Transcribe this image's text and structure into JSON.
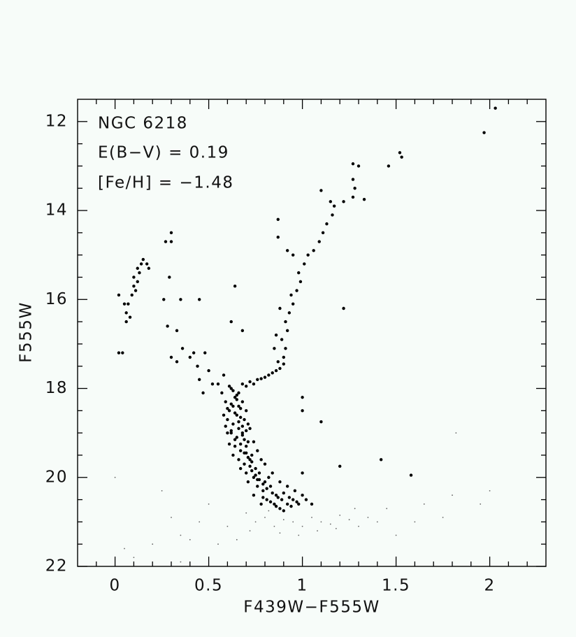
{
  "chart_data": {
    "type": "scatter",
    "annotations": [
      "NGC 6218",
      "E(B−V) = 0.19",
      "[Fe/H] = −1.48"
    ],
    "xlabel": "F439W−F555W",
    "ylabel": "F555W",
    "xlim": [
      -0.2,
      2.3
    ],
    "ylim": [
      22,
      11.5
    ],
    "xticks": [
      0,
      0.5,
      1,
      1.5,
      2
    ],
    "yticks": [
      12,
      14,
      16,
      18,
      20,
      22
    ],
    "minor_xticks": [
      -0.1,
      0.1,
      0.2,
      0.3,
      0.4,
      0.6,
      0.7,
      0.8,
      0.9,
      1.1,
      1.2,
      1.3,
      1.4,
      1.6,
      1.7,
      1.8,
      1.9,
      2.1,
      2.2
    ],
    "minor_yticks": [
      12.5,
      13,
      13.5,
      14.5,
      15,
      15.5,
      16.5,
      17,
      17.5,
      18.5,
      19,
      19.5,
      20.5,
      21,
      21.5
    ],
    "series": [
      {
        "color": "#000000",
        "x": [
          0.62,
          0.64,
          0.66,
          0.63,
          0.61,
          0.65,
          0.68,
          0.6,
          0.63,
          0.66,
          0.69,
          0.62,
          0.65,
          0.68,
          0.71,
          0.64,
          0.67,
          0.7,
          0.73,
          0.66,
          0.69,
          0.72,
          0.75,
          0.7,
          0.74,
          0.77,
          0.8,
          0.76,
          0.79,
          0.83,
          0.86,
          0.81,
          0.85,
          0.89,
          0.92,
          0.88,
          0.95,
          0.98,
          1.02,
          0.78,
          0.74,
          0.71,
          0.67,
          0.63,
          0.6,
          0.58,
          0.59,
          0.57,
          0.7,
          0.72,
          0.76,
          0.8,
          0.84,
          0.88,
          0.92,
          0.96,
          1.0,
          1.05,
          0.82,
          0.78,
          0.74,
          0.71,
          0.66,
          0.61,
          0.63,
          0.65,
          0.67,
          0.64,
          0.66,
          0.68,
          0.7,
          0.62,
          0.64,
          0.67,
          0.69,
          0.71,
          0.73,
          0.68,
          0.7,
          0.72,
          0.75,
          0.77,
          0.79,
          0.81,
          0.84,
          0.87,
          0.9,
          0.93,
          0.97,
          0.73,
          0.76,
          0.79,
          0.83,
          0.86,
          0.9,
          0.94,
          0.65,
          0.67,
          0.69,
          0.6,
          0.62,
          0.59,
          0.61,
          0.68,
          0.72,
          0.76,
          0.8,
          0.84,
          0.88,
          0.9,
          0.7,
          0.74,
          0.78,
          0.82,
          0.86,
          0.9,
          0.91,
          0.89,
          0.92,
          0.91,
          0.93,
          0.95,
          0.94,
          0.97,
          0.99,
          0.98,
          1.01,
          1.03,
          1.06,
          1.09,
          1.11,
          1.13,
          1.16,
          1.17,
          1.22,
          1.27,
          1.28,
          1.27,
          1.3,
          1.27,
          1.46,
          1.52,
          1.53,
          1.97,
          2.03,
          1.1,
          1.15,
          1.33,
          0.87,
          0.87,
          0.92,
          0.95,
          0.88,
          0.86,
          0.85,
          0.87,
          1.22,
          0.64,
          1.0,
          1.0,
          1.1,
          1.42,
          1.58,
          1.2,
          1.0,
          0.02,
          0.04,
          0.02,
          0.05,
          0.06,
          0.06,
          0.07,
          0.09,
          0.1,
          0.1,
          0.12,
          0.13,
          0.12,
          0.14,
          0.15,
          0.17,
          0.18,
          0.11,
          0.08,
          0.27,
          0.3,
          0.3,
          0.29,
          0.26,
          0.35,
          0.45,
          0.28,
          0.33,
          0.33,
          0.36,
          0.4,
          0.44,
          0.48,
          0.5,
          0.45,
          0.47,
          0.55,
          0.52,
          0.58,
          0.62,
          0.68,
          0.3,
          0.42
        ],
        "values": [
          18.0,
          18.2,
          18.1,
          18.4,
          18.5,
          18.6,
          18.3,
          18.7,
          18.8,
          18.9,
          18.7,
          19.0,
          19.1,
          19.0,
          19.2,
          19.3,
          19.4,
          19.3,
          19.5,
          19.6,
          19.7,
          19.6,
          19.8,
          19.9,
          20.0,
          19.9,
          20.1,
          20.2,
          20.3,
          20.2,
          20.4,
          20.5,
          20.6,
          20.5,
          20.6,
          20.7,
          20.5,
          20.6,
          20.5,
          20.6,
          20.4,
          20.1,
          19.8,
          19.5,
          19.0,
          18.6,
          18.3,
          18.1,
          18.5,
          18.9,
          19.4,
          19.7,
          19.9,
          20.1,
          20.2,
          20.3,
          20.4,
          20.6,
          20.0,
          19.6,
          19.2,
          18.8,
          18.4,
          17.95,
          18.05,
          18.25,
          18.45,
          18.55,
          18.75,
          18.85,
          18.95,
          18.35,
          19.15,
          19.25,
          19.45,
          19.55,
          19.65,
          19.05,
          19.45,
          19.75,
          19.95,
          20.05,
          20.15,
          20.25,
          20.35,
          20.45,
          20.35,
          20.45,
          20.55,
          19.85,
          20.05,
          20.45,
          20.55,
          20.65,
          20.75,
          20.65,
          18.15,
          18.65,
          19.15,
          18.45,
          18.95,
          18.85,
          19.25,
          17.9,
          17.85,
          17.8,
          17.75,
          17.65,
          17.55,
          17.45,
          17.95,
          17.9,
          17.78,
          17.7,
          17.6,
          17.3,
          17.1,
          16.9,
          16.7,
          16.5,
          16.3,
          16.1,
          15.9,
          15.8,
          15.6,
          15.4,
          15.2,
          15.0,
          14.9,
          14.7,
          14.5,
          14.3,
          14.1,
          13.9,
          13.8,
          13.7,
          13.5,
          13.3,
          13.0,
          12.95,
          13.0,
          12.7,
          12.8,
          12.25,
          11.7,
          13.55,
          13.8,
          13.75,
          14.2,
          14.6,
          14.9,
          15.0,
          16.2,
          16.8,
          17.1,
          17.4,
          16.2,
          15.7,
          18.2,
          18.5,
          18.75,
          19.6,
          19.95,
          19.75,
          19.9,
          17.2,
          17.2,
          15.9,
          16.1,
          16.3,
          16.5,
          16.1,
          15.9,
          15.7,
          15.5,
          15.6,
          15.4,
          15.3,
          15.2,
          15.1,
          15.2,
          15.3,
          15.8,
          16.4,
          14.7,
          14.7,
          14.5,
          15.5,
          16.0,
          16.0,
          16.0,
          16.6,
          16.7,
          17.4,
          17.1,
          17.3,
          17.5,
          17.2,
          17.6,
          17.8,
          18.1,
          17.9,
          17.9,
          17.7,
          16.5,
          16.7,
          17.3,
          17.2
        ]
      },
      {
        "color": "#666666",
        "x": [
          0.75,
          0.8,
          0.85,
          0.9,
          0.95,
          1.0,
          1.05,
          1.1,
          1.15,
          1.2,
          1.25,
          1.3,
          1.35,
          0.7,
          0.72,
          0.88,
          0.98,
          1.08,
          1.18,
          1.4,
          0.3,
          0.35,
          0.45,
          0.2,
          0.1,
          0.05,
          0.65,
          0.55,
          0.6,
          1.5,
          1.65,
          1.75,
          1.8,
          1.95,
          2.0,
          1.82,
          1.6,
          0.4,
          0.25,
          1.45,
          0.0,
          0.35,
          0.5,
          1.28,
          0.82
        ],
        "values": [
          21.0,
          20.9,
          21.1,
          20.95,
          21.0,
          21.1,
          20.9,
          21.0,
          21.05,
          20.85,
          20.95,
          21.1,
          20.9,
          20.8,
          21.2,
          21.25,
          21.3,
          21.2,
          21.15,
          21.0,
          20.9,
          21.3,
          21.0,
          21.5,
          21.8,
          21.6,
          21.4,
          21.5,
          21.1,
          21.3,
          20.6,
          20.9,
          20.4,
          20.6,
          20.3,
          19.0,
          21.0,
          21.4,
          20.3,
          20.7,
          20.0,
          21.9,
          20.6,
          20.7,
          20.75
        ]
      }
    ]
  }
}
